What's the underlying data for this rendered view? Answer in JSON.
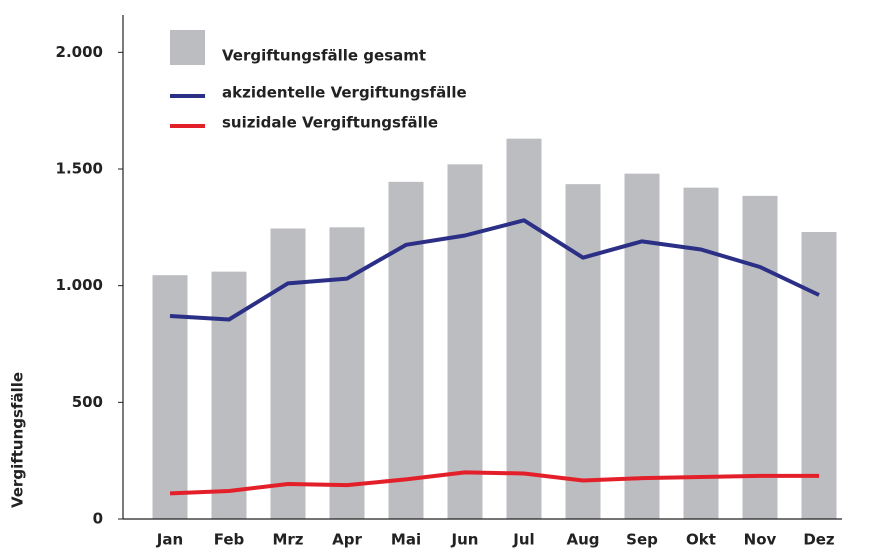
{
  "chart_data": {
    "type": "bar_line",
    "y_label": "Vergiftungsfälle",
    "categories": [
      "Jan",
      "Feb",
      "Mrz",
      "Apr",
      "Mai",
      "Jun",
      "Jul",
      "Aug",
      "Sep",
      "Okt",
      "Nov",
      "Dez"
    ],
    "series": [
      {
        "name": "Vergiftungsfälle gesamt",
        "type": "bar",
        "color": "#bcbdc1",
        "values": [
          1045,
          1060,
          1245,
          1250,
          1445,
          1520,
          1630,
          1435,
          1480,
          1420,
          1385,
          1230
        ]
      },
      {
        "name": "akzidentelle Vergiftungsfälle",
        "type": "line",
        "color": "#2b2f86",
        "values": [
          870,
          855,
          1010,
          1030,
          1175,
          1215,
          1280,
          1120,
          1190,
          1155,
          1080,
          960
        ]
      },
      {
        "name": "suizidale Vergiftungsfälle",
        "type": "line",
        "color": "#e3202a",
        "values": [
          110,
          120,
          150,
          145,
          170,
          200,
          195,
          165,
          175,
          180,
          185,
          185
        ]
      }
    ],
    "ylim": [
      0,
      2160
    ],
    "yticks": [
      0,
      500,
      {
        "value": 1000,
        "label": "1.000"
      },
      {
        "value": 1500,
        "label": "1.500"
      },
      {
        "value": 2000,
        "label": "2.000"
      }
    ],
    "grid": false,
    "legend": "top-left"
  }
}
